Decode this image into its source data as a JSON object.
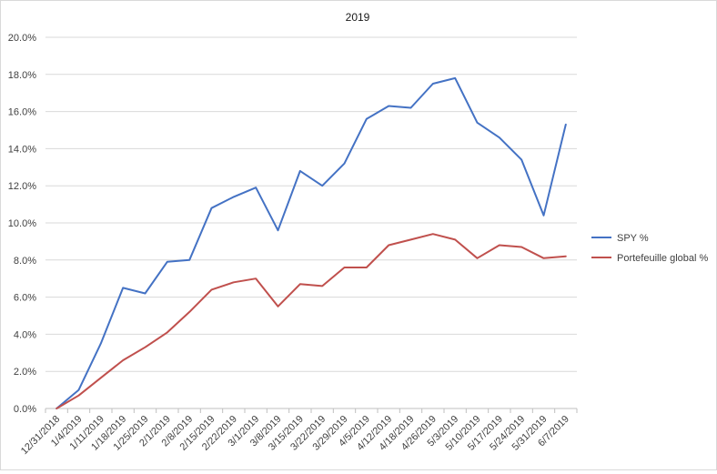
{
  "chart_data": {
    "type": "line",
    "title": "2019",
    "xlabel": "",
    "ylabel": "",
    "ylim": [
      0,
      20
    ],
    "y_tick_format": "percent_1dp",
    "y_ticks": [
      0,
      2,
      4,
      6,
      8,
      10,
      12,
      14,
      16,
      18,
      20
    ],
    "y_tick_labels": [
      "0.0%",
      "2.0%",
      "4.0%",
      "6.0%",
      "8.0%",
      "10.0%",
      "12.0%",
      "14.0%",
      "16.0%",
      "18.0%",
      "20.0%"
    ],
    "grid": true,
    "legend_position": "right",
    "categories": [
      "12/31/2018",
      "1/4/2019",
      "1/11/2019",
      "1/18/2019",
      "1/25/2019",
      "2/1/2019",
      "2/8/2019",
      "2/15/2019",
      "2/22/2019",
      "3/1/2019",
      "3/8/2019",
      "3/15/2019",
      "3/22/2019",
      "3/29/2019",
      "4/5/2019",
      "4/12/2019",
      "4/18/2019",
      "4/26/2019",
      "5/3/2019",
      "5/10/2019",
      "5/17/2019",
      "5/24/2019",
      "5/31/2019",
      "6/7/2019"
    ],
    "series": [
      {
        "name": "SPY %",
        "color": "#4472c4",
        "values": [
          0,
          1.0,
          3.5,
          6.5,
          6.2,
          7.9,
          8.0,
          10.8,
          11.4,
          11.9,
          9.6,
          12.8,
          12.0,
          13.2,
          15.6,
          16.3,
          16.2,
          17.5,
          17.8,
          15.4,
          14.6,
          13.4,
          10.4,
          15.3
        ]
      },
      {
        "name": "Portefeuille global %",
        "color": "#c0504d",
        "values": [
          0,
          0.7,
          1.65,
          2.6,
          3.3,
          4.1,
          5.2,
          6.4,
          6.8,
          7.0,
          5.5,
          6.7,
          6.6,
          7.6,
          7.6,
          8.8,
          9.1,
          9.4,
          9.1,
          8.1,
          8.8,
          8.7,
          8.1,
          8.2
        ]
      }
    ]
  }
}
